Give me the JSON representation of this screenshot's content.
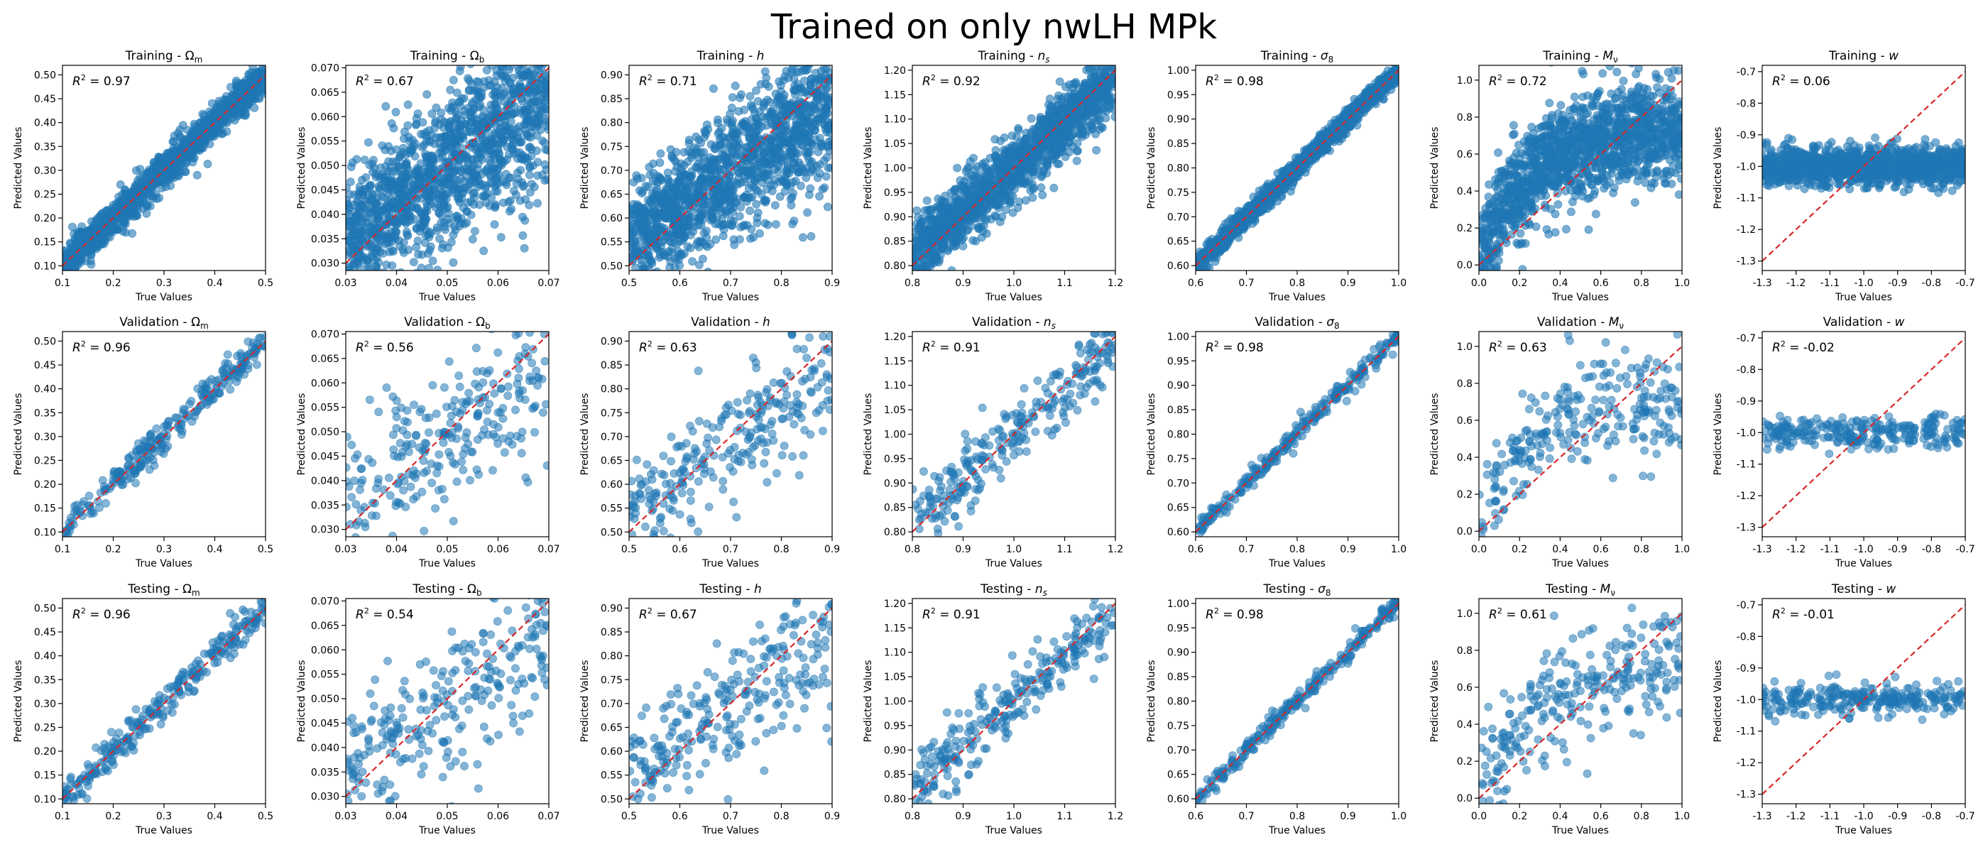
{
  "figure": {
    "title": "Trained on only nwLH MPk"
  },
  "common": {
    "xlabel": "True Values",
    "ylabel": "Predicted Values"
  },
  "colors": {
    "points": "#1f77b4",
    "identity_line": "#d62728"
  },
  "rows": [
    {
      "name": "Training",
      "alpha": 0.6,
      "n_points": 1400,
      "noise_scale": 1.0
    },
    {
      "name": "Validation",
      "alpha": 0.55,
      "n_points": 260,
      "noise_scale": 1.0
    },
    {
      "name": "Testing",
      "alpha": 0.55,
      "n_points": 260,
      "noise_scale": 1.0
    }
  ],
  "params": [
    {
      "key": "Omega_m",
      "symbol": "Ω",
      "sub": "m",
      "italic": false,
      "xlim": [
        0.1,
        0.5
      ],
      "ylim": [
        0.09,
        0.52
      ],
      "xticks": [
        "0.1",
        "0.2",
        "0.3",
        "0.4",
        "0.5"
      ],
      "yticks": [
        "0.10",
        "0.15",
        "0.20",
        "0.25",
        "0.30",
        "0.35",
        "0.40",
        "0.45",
        "0.50"
      ]
    },
    {
      "key": "Omega_b",
      "symbol": "Ω",
      "sub": "b",
      "italic": false,
      "xlim": [
        0.03,
        0.07
      ],
      "ylim": [
        0.0285,
        0.0705
      ],
      "xticks": [
        "0.03",
        "0.04",
        "0.05",
        "0.06",
        "0.07"
      ],
      "yticks": [
        "0.030",
        "0.035",
        "0.040",
        "0.045",
        "0.050",
        "0.055",
        "0.060",
        "0.065",
        "0.070"
      ]
    },
    {
      "key": "h",
      "symbol": "h",
      "sub": "",
      "italic": true,
      "xlim": [
        0.5,
        0.9
      ],
      "ylim": [
        0.49,
        0.92
      ],
      "xticks": [
        "0.5",
        "0.6",
        "0.7",
        "0.8",
        "0.9"
      ],
      "yticks": [
        "0.50",
        "0.55",
        "0.60",
        "0.65",
        "0.70",
        "0.75",
        "0.80",
        "0.85",
        "0.90"
      ]
    },
    {
      "key": "n_s",
      "symbol": "n",
      "sub": "s",
      "italic": true,
      "xlim": [
        0.8,
        1.2
      ],
      "ylim": [
        0.79,
        1.21
      ],
      "xticks": [
        "0.8",
        "0.9",
        "1.0",
        "1.1",
        "1.2"
      ],
      "yticks": [
        "0.80",
        "0.85",
        "0.90",
        "0.95",
        "1.00",
        "1.05",
        "1.10",
        "1.15",
        "1.20"
      ]
    },
    {
      "key": "sigma_8",
      "symbol": "σ",
      "sub": "8",
      "italic": true,
      "xlim": [
        0.6,
        1.0
      ],
      "ylim": [
        0.59,
        1.01
      ],
      "xticks": [
        "0.6",
        "0.7",
        "0.8",
        "0.9",
        "1.0"
      ],
      "yticks": [
        "0.60",
        "0.65",
        "0.70",
        "0.75",
        "0.80",
        "0.85",
        "0.90",
        "0.95",
        "1.00"
      ]
    },
    {
      "key": "M_nu",
      "symbol": "M",
      "sub": "ν",
      "italic": true,
      "xlim": [
        0.0,
        1.0
      ],
      "ylim": [
        -0.03,
        1.08
      ],
      "xticks": [
        "0.0",
        "0.2",
        "0.4",
        "0.6",
        "0.8",
        "1.0"
      ],
      "yticks": [
        "0.0",
        "0.2",
        "0.4",
        "0.6",
        "0.8",
        "1.0"
      ]
    },
    {
      "key": "w",
      "symbol": "w",
      "sub": "",
      "italic": true,
      "xlim": [
        -1.3,
        -0.7
      ],
      "ylim": [
        -1.33,
        -0.68
      ],
      "xticks": [
        "-1.3",
        "-1.2",
        "-1.1",
        "-1.0",
        "-0.9",
        "-0.8",
        "-0.7"
      ],
      "yticks": [
        "-1.3",
        "-1.2",
        "-1.1",
        "-1.0",
        "-0.9",
        "-0.8",
        "-0.7"
      ]
    }
  ],
  "chart_data": {
    "type": "scatter",
    "title": "Trained on only nwLH MPk",
    "xlabel": "True Values",
    "ylabel": "Predicted Values",
    "reference_line": "y = x (red dashed)",
    "grid": false,
    "panels": [
      {
        "title": "Training - Ωm",
        "r2": "R² = 0.97"
      },
      {
        "title": "Training - Ωb",
        "r2": "R² = 0.67"
      },
      {
        "title": "Training - h",
        "r2": "R² = 0.71"
      },
      {
        "title": "Training - ns",
        "r2": "R² = 0.92"
      },
      {
        "title": "Training - σ8",
        "r2": "R² = 0.98"
      },
      {
        "title": "Training - Mν",
        "r2": "R² = 0.72"
      },
      {
        "title": "Training - w",
        "r2": "R² = 0.06"
      },
      {
        "title": "Validation - Ωm",
        "r2": "R² = 0.96"
      },
      {
        "title": "Validation - Ωb",
        "r2": "R² = 0.56"
      },
      {
        "title": "Validation - h",
        "r2": "R² = 0.63"
      },
      {
        "title": "Validation - ns",
        "r2": "R² = 0.91"
      },
      {
        "title": "Validation - σ8",
        "r2": "R² = 0.98"
      },
      {
        "title": "Validation - Mν",
        "r2": "R² = 0.63"
      },
      {
        "title": "Validation - w",
        "r2": "R² = -0.02"
      },
      {
        "title": "Testing - Ωm",
        "r2": "R² = 0.96"
      },
      {
        "title": "Testing - Ωb",
        "r2": "R² = 0.54"
      },
      {
        "title": "Testing - h",
        "r2": "R² = 0.67"
      },
      {
        "title": "Testing - ns",
        "r2": "R² = 0.91"
      },
      {
        "title": "Testing - σ8",
        "r2": "R² = 0.98"
      },
      {
        "title": "Testing - Mν",
        "r2": "R² = 0.61"
      },
      {
        "title": "Testing - w",
        "r2": "R² = -0.01"
      }
    ]
  }
}
